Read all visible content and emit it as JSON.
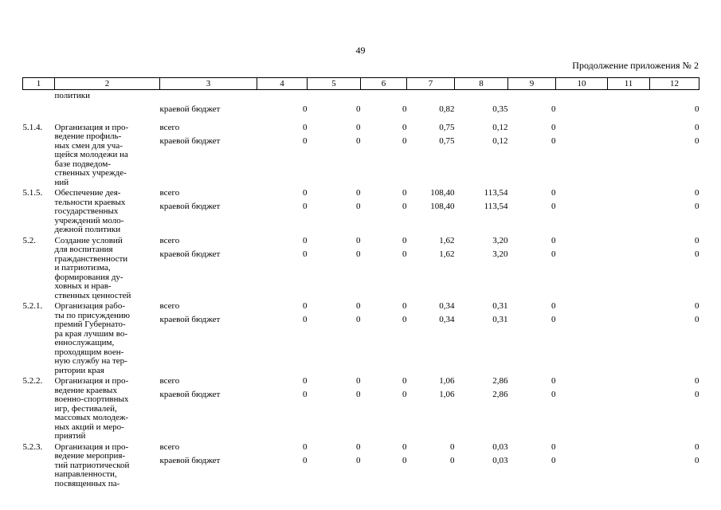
{
  "page": {
    "number": "49",
    "continuation_note": "Продолжение приложения № 2"
  },
  "table": {
    "columns": [
      "1",
      "2",
      "3",
      "4",
      "5",
      "6",
      "7",
      "8",
      "9",
      "10",
      "11",
      "12"
    ],
    "rows": [
      {
        "num": "",
        "name": "политики",
        "budget_lines": [
          {
            "label": "",
            "values": [
              "",
              "",
              "",
              "",
              "",
              "",
              "",
              "",
              ""
            ]
          },
          {
            "label": "краевой бюджет",
            "values": [
              "0",
              "0",
              "0",
              "0,82",
              "0,35",
              "0",
              "",
              "",
              "0"
            ]
          }
        ]
      },
      {
        "num": "5.1.4.",
        "name": "Организация и про-\nведение профиль-\nных смен для уча-\nщейся молодежи на\nбазе подведом-\nственных учрежде-\nний",
        "budget_lines": [
          {
            "label": "всего",
            "values": [
              "0",
              "0",
              "0",
              "0,75",
              "0,12",
              "0",
              "",
              "",
              "0"
            ]
          },
          {
            "label": "краевой бюджет",
            "values": [
              "0",
              "0",
              "0",
              "0,75",
              "0,12",
              "0",
              "",
              "",
              "0"
            ]
          }
        ]
      },
      {
        "num": "5.1.5.",
        "name": "Обеспечение дея-\nтельности краевых\nгосударственных\nучреждений моло-\nдежной политики",
        "budget_lines": [
          {
            "label": "всего",
            "values": [
              "0",
              "0",
              "0",
              "108,40",
              "113,54",
              "0",
              "",
              "",
              "0"
            ]
          },
          {
            "label": "краевой бюджет",
            "values": [
              "0",
              "0",
              "0",
              "108,40",
              "113,54",
              "0",
              "",
              "",
              "0"
            ]
          }
        ]
      },
      {
        "num": "5.2.",
        "name": "Создание условий\nдля воспитания\nгражданственности\nи патриотизма,\nформирования ду-\nховных и нрав-\nственных ценностей",
        "budget_lines": [
          {
            "label": "всего",
            "values": [
              "0",
              "0",
              "0",
              "1,62",
              "3,20",
              "0",
              "",
              "",
              "0"
            ]
          },
          {
            "label": "краевой бюджет",
            "values": [
              "0",
              "0",
              "0",
              "1,62",
              "3,20",
              "0",
              "",
              "",
              "0"
            ]
          }
        ]
      },
      {
        "num": "5.2.1.",
        "name": "Организация рабо-\nты по присуждению\nпремий Губернато-\nра края лучшим во-\nеннослужащим,\nпроходящим воен-\nную службу на тер-\nритории края",
        "budget_lines": [
          {
            "label": "всего",
            "values": [
              "0",
              "0",
              "0",
              "0,34",
              "0,31",
              "0",
              "",
              "",
              "0"
            ]
          },
          {
            "label": "краевой бюджет",
            "values": [
              "0",
              "0",
              "0",
              "0,34",
              "0,31",
              "0",
              "",
              "",
              "0"
            ]
          }
        ]
      },
      {
        "num": "5.2.2.",
        "name": "Организация и про-\nведение краевых\nвоенно-спортивных\nигр, фестивалей,\nмассовых молодеж-\nных акций и меро-\nприятий",
        "budget_lines": [
          {
            "label": "всего",
            "values": [
              "0",
              "0",
              "0",
              "1,06",
              "2,86",
              "0",
              "",
              "",
              "0"
            ]
          },
          {
            "label": "краевой бюджет",
            "values": [
              "0",
              "0",
              "0",
              "1,06",
              "2,86",
              "0",
              "",
              "",
              "0"
            ]
          }
        ]
      },
      {
        "num": "5.2.3.",
        "name": "Организация и про-\nведение мероприя-\nтий патриотической\nнаправленности,\nпосвященных па-",
        "budget_lines": [
          {
            "label": "всего",
            "values": [
              "0",
              "0",
              "0",
              "0",
              "0,03",
              "0",
              "",
              "",
              "0"
            ]
          },
          {
            "label": "краевой бюджет",
            "values": [
              "0",
              "0",
              "0",
              "0",
              "0,03",
              "0",
              "",
              "",
              "0"
            ]
          }
        ]
      }
    ]
  }
}
